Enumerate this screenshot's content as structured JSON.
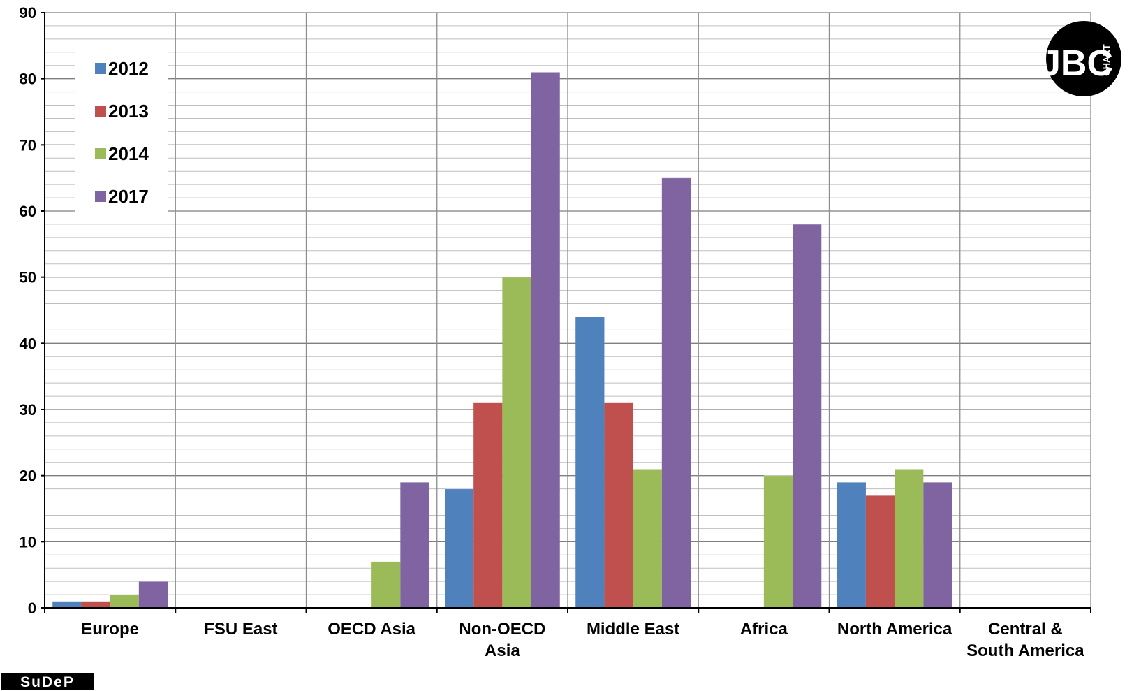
{
  "chart_data": {
    "type": "bar",
    "categories": [
      "Europe",
      "FSU East",
      "OECD Asia",
      "Non-OECD Asia",
      "Middle East",
      "Africa",
      "North America",
      "Central & South America"
    ],
    "category_label_lines": [
      [
        "Europe"
      ],
      [
        "FSU East"
      ],
      [
        "OECD Asia"
      ],
      [
        "Non-OECD",
        "Asia"
      ],
      [
        "Middle East"
      ],
      [
        "Africa"
      ],
      [
        "North America"
      ],
      [
        "Central &",
        "South America"
      ]
    ],
    "series": [
      {
        "name": "2012",
        "color": "#4f81bd",
        "values": [
          1,
          0,
          0,
          18,
          44,
          0,
          19,
          0
        ]
      },
      {
        "name": "2013",
        "color": "#c0504d",
        "values": [
          1,
          0,
          0,
          31,
          31,
          0,
          17,
          0
        ]
      },
      {
        "name": "2014",
        "color": "#9bbb59",
        "values": [
          2,
          0,
          7,
          50,
          21,
          20,
          21,
          0
        ]
      },
      {
        "name": "2017",
        "color": "#8064a2",
        "values": [
          4,
          0,
          19,
          81,
          65,
          58,
          19,
          0
        ]
      }
    ],
    "ylim": [
      0,
      90
    ],
    "yticks": [
      "0",
      "10",
      "20",
      "30",
      "40",
      "50",
      "60",
      "70",
      "80",
      "90"
    ],
    "title": "",
    "xlabel": "",
    "ylabel": "",
    "grid": true,
    "legend_position": "top-left"
  },
  "logos": {
    "sudep": "SuDeP",
    "jbc": {
      "letters": "JBC",
      "word": "CHART"
    }
  }
}
